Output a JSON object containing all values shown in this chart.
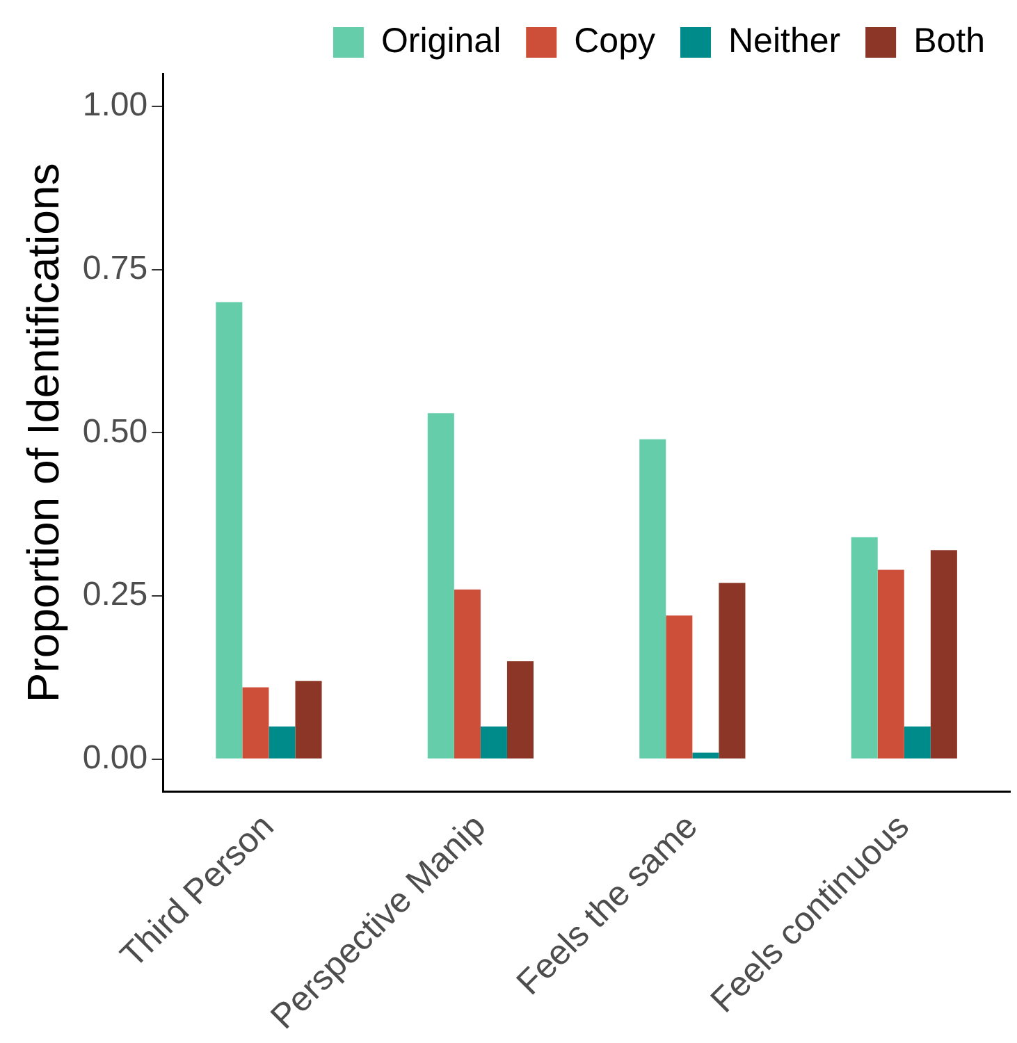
{
  "chart_data": {
    "type": "bar",
    "ylabel": "Proportion of Identifications",
    "categories": [
      "Third Person",
      "Perspective Manip",
      "Feels the same",
      "Feels continuous"
    ],
    "series": [
      {
        "name": "Original",
        "color": "#66cdaa",
        "values": [
          0.7,
          0.53,
          0.49,
          0.34
        ]
      },
      {
        "name": "Copy",
        "color": "#cd4f39",
        "values": [
          0.11,
          0.26,
          0.22,
          0.29
        ]
      },
      {
        "name": "Neither",
        "color": "#008b8b",
        "values": [
          0.05,
          0.05,
          0.01,
          0.05
        ]
      },
      {
        "name": "Both",
        "color": "#8b3626",
        "values": [
          0.12,
          0.15,
          0.27,
          0.32
        ]
      }
    ],
    "ylim": [
      -0.05,
      1.05
    ],
    "yticks": [
      {
        "value": 0,
        "label": "0.00"
      },
      {
        "value": 0.25,
        "label": "0.25"
      },
      {
        "value": 0.5,
        "label": "0.50"
      },
      {
        "value": 0.75,
        "label": "0.75"
      },
      {
        "value": 1,
        "label": "1.00"
      }
    ],
    "grid": false,
    "legend": "top right"
  }
}
